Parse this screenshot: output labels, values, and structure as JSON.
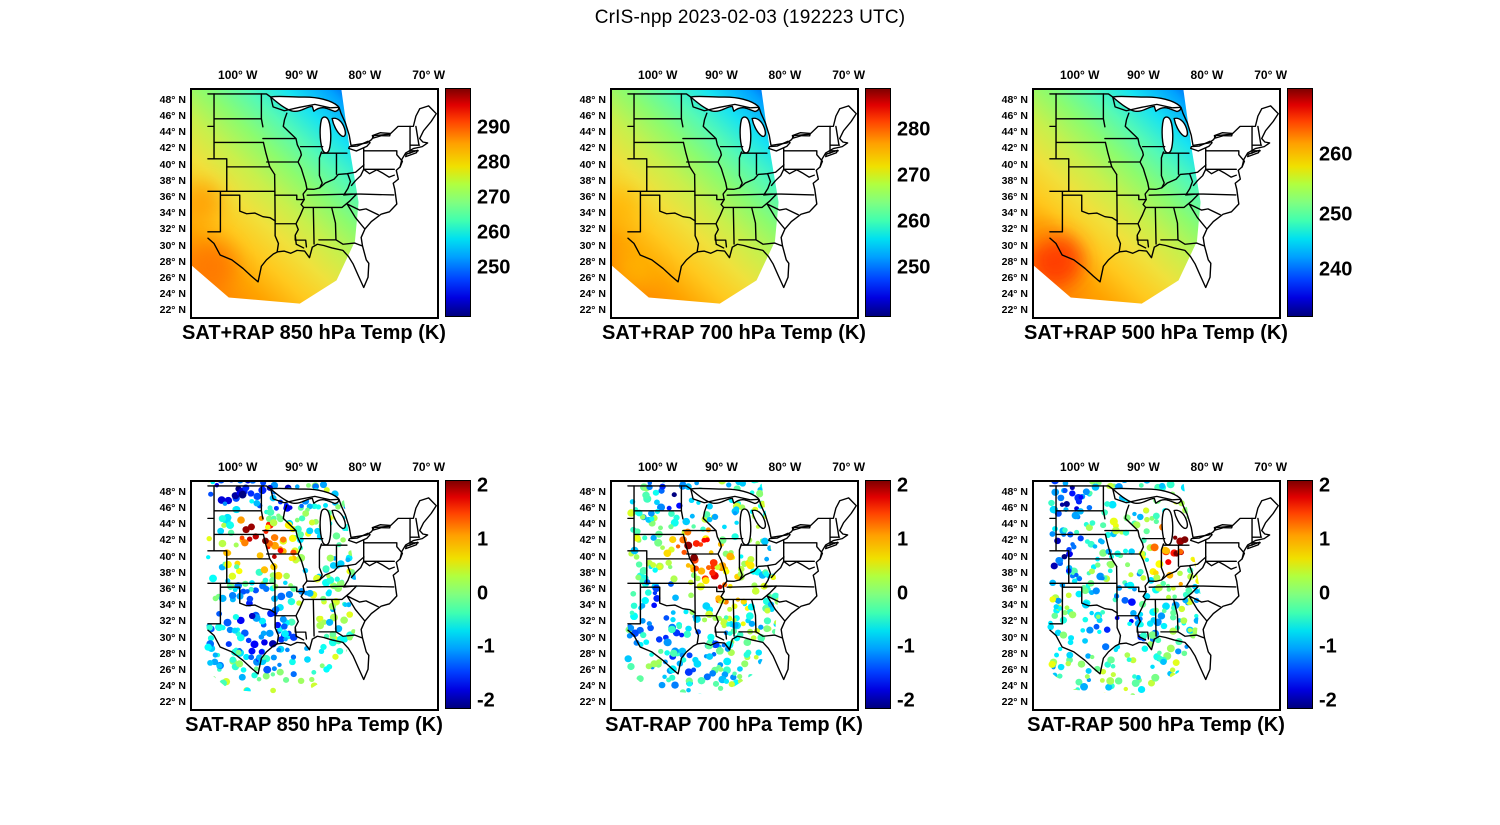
{
  "figure": {
    "title": "CrIS-npp 2023-02-03 (192223 UTC)",
    "instrument": "CrIS-npp",
    "date": "2023-02-03",
    "time_utc": "192223"
  },
  "axes": {
    "lon_ticks": [
      "100° W",
      "90° W",
      "80° W",
      "70° W"
    ],
    "lat_ticks": [
      "48° N",
      "46° N",
      "44° N",
      "42° N",
      "40° N",
      "38° N",
      "36° N",
      "34° N",
      "32° N",
      "30° N",
      "28° N",
      "26° N",
      "24° N",
      "22° N"
    ]
  },
  "colorbar": {
    "colormap": "jet"
  },
  "panels": [
    {
      "id": "sat-plus-rap-850",
      "kind": "field",
      "title": "SAT+RAP 850 hPa Temp (K)",
      "colorbar_ticks": [
        "290",
        "280",
        "270",
        "260",
        "250"
      ]
    },
    {
      "id": "sat-plus-rap-700",
      "kind": "field",
      "title": "SAT+RAP 700 hPa Temp (K)",
      "colorbar_ticks": [
        "280",
        "270",
        "260",
        "250"
      ]
    },
    {
      "id": "sat-plus-rap-500",
      "kind": "field",
      "title": "SAT+RAP 500 hPa Temp (K)",
      "colorbar_ticks": [
        "260",
        "250",
        "240"
      ]
    },
    {
      "id": "sat-minus-rap-850",
      "kind": "diff",
      "title": "SAT-RAP 850 hPa Temp (K)",
      "colorbar_ticks": [
        "2",
        "1",
        "0",
        "-1",
        "-2"
      ]
    },
    {
      "id": "sat-minus-rap-700",
      "kind": "diff",
      "title": "SAT-RAP 700 hPa Temp (K)",
      "colorbar_ticks": [
        "2",
        "1",
        "0",
        "-1",
        "-2"
      ]
    },
    {
      "id": "sat-minus-rap-500",
      "kind": "diff",
      "title": "SAT-RAP 500 hPa Temp (K)",
      "colorbar_ticks": [
        "2",
        "1",
        "0",
        "-1",
        "-2"
      ]
    }
  ],
  "chart_data": [
    {
      "type": "heatmap",
      "title": "SAT+RAP 850 hPa Temp (K)",
      "variable": "850 hPa temperature (satellite + RAP blend)",
      "units": "K",
      "colormap": "jet",
      "colorbar_ticks": [
        290,
        280,
        270,
        260,
        250
      ],
      "value_range_est": [
        244,
        302
      ],
      "lon_ticks_deg_west": [
        100,
        90,
        80,
        70
      ],
      "lat_ticks_deg_north": [
        48,
        46,
        44,
        42,
        40,
        38,
        36,
        34,
        32,
        30,
        28,
        26,
        24,
        22
      ],
      "map_extent_est": {
        "lon_deg_west": [
          108,
          69
        ],
        "lat_deg_north": [
          21.5,
          49.5
        ]
      },
      "pattern": "Smooth field over the satellite swath covering the central US: coldest ~245-250 K (dark blue) over the upper Great Lakes at the northeast swath edge, warming southwestward through cyan/green (~262-272 K) to yellow-orange (~285-295 K) over Texas and the Gulf coast; white (no retrieval) over the eastern seaboard."
    },
    {
      "type": "heatmap",
      "title": "SAT+RAP 700 hPa Temp (K)",
      "variable": "700 hPa temperature (satellite + RAP blend)",
      "units": "K",
      "colormap": "jet",
      "colorbar_ticks": [
        280,
        270,
        260,
        250
      ],
      "value_range_est": [
        242,
        290
      ],
      "lon_ticks_deg_west": [
        100,
        90,
        80,
        70
      ],
      "lat_ticks_deg_north": [
        48,
        46,
        44,
        42,
        40,
        38,
        36,
        34,
        32,
        30,
        28,
        26,
        24,
        22
      ],
      "map_extent_est": {
        "lon_deg_west": [
          108,
          69
        ],
        "lat_deg_north": [
          21.5,
          49.5
        ]
      },
      "pattern": "Same spatial pattern as 850 hPa but colder overall: dark blue ~245 K in the north/northeast of the swath, yellow ~278-283 K across the southern plains and Gulf coast."
    },
    {
      "type": "heatmap",
      "title": "SAT+RAP 500 hPa Temp (K)",
      "variable": "500 hPa temperature (satellite + RAP blend)",
      "units": "K",
      "colormap": "jet",
      "colorbar_ticks": [
        260,
        250,
        240
      ],
      "value_range_est": [
        236,
        268
      ],
      "lon_ticks_deg_west": [
        100,
        90,
        80,
        70
      ],
      "lat_ticks_deg_north": [
        48,
        46,
        44,
        42,
        40,
        38,
        36,
        34,
        32,
        30,
        28,
        26,
        24,
        22
      ],
      "map_extent_est": {
        "lon_deg_west": [
          108,
          69
        ],
        "lat_deg_north": [
          21.5,
          49.5
        ]
      },
      "pattern": "Colder upper level: blue ~240 K north and northeast, green-yellow ~252-258 K center, warmest orange-red ~262-266 K blob over far-south Texas / western Gulf."
    },
    {
      "type": "scatter",
      "title": "SAT-RAP 850 hPa Temp (K)",
      "variable": "850 hPa temperature difference, satellite minus RAP",
      "units": "K",
      "colormap": "jet",
      "colorbar_ticks": [
        2,
        1,
        0,
        -1,
        -2
      ],
      "value_range": [
        -2,
        2
      ],
      "pattern": "Noisy point differences over the swath: strong warm (dark red, ~+2 K) cluster over Nebraska/Iowa, cold (dark blue, ~-2 K) points along the northern edge, mostly cyan (-0.5 to -1 K) over Texas and the lower Mississippi valley.",
      "clusters": [
        {
          "lon_w": 97.5,
          "lat_n": 42.5,
          "radius_deg": 3.5,
          "diff_k": 2.3
        },
        {
          "lon_w": 93.5,
          "lat_n": 40.0,
          "radius_deg": 2.5,
          "diff_k": 1.6
        },
        {
          "lon_w": 100.5,
          "lat_n": 48.5,
          "radius_deg": 3.0,
          "diff_k": -2.0
        },
        {
          "lon_w": 93.0,
          "lat_n": 48.0,
          "radius_deg": 3.0,
          "diff_k": -1.6
        },
        {
          "lon_w": 99.0,
          "lat_n": 32.5,
          "radius_deg": 5.0,
          "diff_k": -1.0
        },
        {
          "lon_w": 93.5,
          "lat_n": 29.5,
          "radius_deg": 4.0,
          "diff_k": -0.8
        }
      ]
    },
    {
      "type": "scatter",
      "title": "SAT-RAP 700 hPa Temp (K)",
      "variable": "700 hPa temperature difference, satellite minus RAP",
      "units": "K",
      "colormap": "jet",
      "colorbar_ticks": [
        2,
        1,
        0,
        -1,
        -2
      ],
      "value_range": [
        -2,
        2
      ],
      "pattern": "Warm (red, +1 to +2 K) band over Iowa/Missouri and along the mid-Mississippi valley, scattered dark blue (-2 K) points near the northern edge, cyan (-1 K) over west Texas.",
      "clusters": [
        {
          "lon_w": 94.5,
          "lat_n": 41.0,
          "radius_deg": 3.0,
          "diff_k": 2.2
        },
        {
          "lon_w": 90.0,
          "lat_n": 37.0,
          "radius_deg": 3.0,
          "diff_k": 1.8
        },
        {
          "lon_w": 98.0,
          "lat_n": 48.0,
          "radius_deg": 3.0,
          "diff_k": -1.8
        },
        {
          "lon_w": 101.0,
          "lat_n": 34.0,
          "radius_deg": 4.0,
          "diff_k": -1.2
        },
        {
          "lon_w": 95.0,
          "lat_n": 28.5,
          "radius_deg": 4.0,
          "diff_k": -0.8
        }
      ]
    },
    {
      "type": "scatter",
      "title": "SAT-RAP 500 hPa Temp (K)",
      "variable": "500 hPa temperature difference, satellite minus RAP",
      "units": "K",
      "colormap": "jet",
      "colorbar_ticks": [
        2,
        1,
        0,
        -1,
        -2
      ],
      "value_range": [
        -2,
        2
      ],
      "pattern": "Strong warm (dark red, ~+2 K) cluster over Michigan/Lake Erie region, dark blue (-1.5 to -2 K) points along the western edge, mostly cyan/yellow-green small differences elsewhere.",
      "clusters": [
        {
          "lon_w": 84.5,
          "lat_n": 42.5,
          "radius_deg": 3.5,
          "diff_k": 2.4
        },
        {
          "lon_w": 86.0,
          "lat_n": 38.5,
          "radius_deg": 2.5,
          "diff_k": 1.2
        },
        {
          "lon_w": 103.5,
          "lat_n": 41.0,
          "radius_deg": 3.0,
          "diff_k": -1.8
        },
        {
          "lon_w": 101.5,
          "lat_n": 47.5,
          "radius_deg": 3.0,
          "diff_k": -1.5
        },
        {
          "lon_w": 93.0,
          "lat_n": 33.0,
          "radius_deg": 5.0,
          "diff_k": -0.8
        }
      ]
    }
  ]
}
